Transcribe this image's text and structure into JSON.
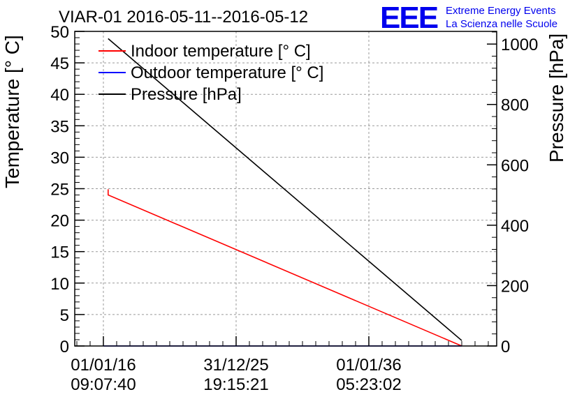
{
  "chart_data": {
    "type": "line",
    "title": "VIAR-01 2016-05-11--2016-05-12",
    "logo": {
      "mark": "EEE",
      "line1": "Extreme Energy Events",
      "line2": "La Scienza nelle Scuole",
      "color": "#0000ee"
    },
    "ylabel": "Temperature [° C]",
    "y2label": "Pressure [hPa]",
    "ylim": [
      0,
      50
    ],
    "y2lim": [
      0,
      1042
    ],
    "yticks": [
      "0",
      "5",
      "10",
      "15",
      "20",
      "25",
      "30",
      "35",
      "40",
      "45",
      "50"
    ],
    "y2ticks": [
      "0",
      "200",
      "400",
      "600",
      "800",
      "1000"
    ],
    "xticks": [
      {
        "date": "01/01/16",
        "time": "09:07:40"
      },
      {
        "date": "31/12/25",
        "time": "19:15:21"
      },
      {
        "date": "01/01/36",
        "time": "05:23:02"
      }
    ],
    "grid": true,
    "legend_position": "top-left",
    "series": [
      {
        "name": "Indoor temperature [° C]",
        "color": "#ff0000",
        "axis": "left",
        "points": [
          {
            "x": "2016-05-11",
            "y": 24.9
          },
          {
            "x": "2016-05-11",
            "y": 24.0
          },
          {
            "x": "2043-01-01",
            "y": 0.0
          }
        ]
      },
      {
        "name": "Outdoor temperature [° C]",
        "color": "#0000ff",
        "axis": "left",
        "points": [
          {
            "x": "2016-01-01",
            "y": 0.0
          },
          {
            "x": "2043-01-01",
            "y": 0.0
          }
        ]
      },
      {
        "name": "Pressure [hPa]",
        "color": "#000000",
        "axis": "right",
        "points": [
          {
            "x": "2016-05-11",
            "y": 1018
          },
          {
            "x": "2043-01-01",
            "y": 18
          }
        ]
      }
    ]
  }
}
